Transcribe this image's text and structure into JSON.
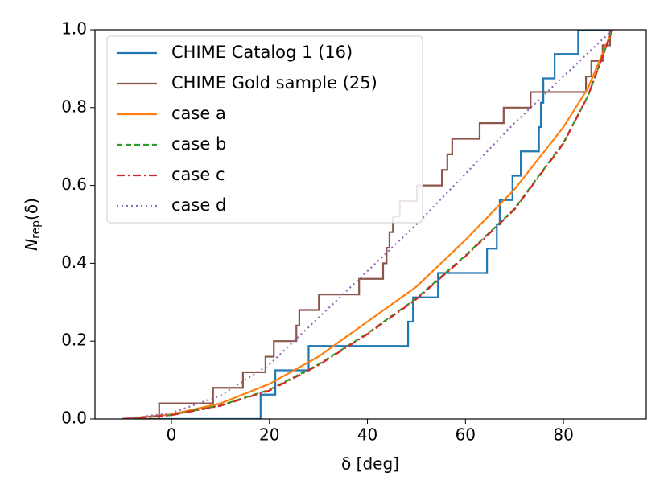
{
  "chart_data": {
    "type": "line",
    "xlabel": "δ [deg]",
    "ylabel": [
      "N",
      "rep",
      "(δ)"
    ],
    "xlim": [
      -15.6,
      96.9
    ],
    "ylim": [
      0,
      1
    ],
    "xticks": [
      0,
      20,
      40,
      60,
      80
    ],
    "yticks": [
      {
        "value": 0,
        "label": "0.0"
      },
      {
        "value": 0.2,
        "label": "0.2"
      },
      {
        "value": 0.4,
        "label": "0.4"
      },
      {
        "value": 0.6,
        "label": "0.6"
      },
      {
        "value": 0.8,
        "label": "0.8"
      },
      {
        "value": 1,
        "label": "1.0"
      }
    ],
    "legend": "upper left",
    "series": [
      {
        "name": "CHIME Catalog 1 (16)",
        "color": "#1f77b4",
        "linestyle": "solid",
        "drawstyle": "steps-post",
        "x": [
          -10,
          18.2,
          21.2,
          28,
          48.3,
          49.3,
          54.4,
          64.4,
          66.4,
          67,
          69.6,
          71.3,
          75,
          75.4,
          75.9,
          78.2,
          83,
          90
        ],
        "values": [
          0,
          0.0625,
          0.125,
          0.1875,
          0.25,
          0.3125,
          0.375,
          0.4375,
          0.5,
          0.5625,
          0.625,
          0.6875,
          0.75,
          0.8125,
          0.875,
          0.9375,
          1,
          1
        ]
      },
      {
        "name": "CHIME Gold sample (25)",
        "color": "#8c564b",
        "linestyle": "solid",
        "drawstyle": "steps-post",
        "x": [
          -10,
          -2.5,
          8.5,
          14.6,
          19.2,
          20.9,
          25.5,
          26.1,
          30.1,
          38.3,
          43.2,
          43.9,
          44.5,
          45.2,
          46.6,
          50.1,
          55.2,
          56.3,
          57.3,
          62.9,
          67.8,
          73.3,
          84.6,
          85.7,
          88,
          89.5
        ],
        "values": [
          0,
          0.04,
          0.08,
          0.12,
          0.16,
          0.2,
          0.24,
          0.28,
          0.32,
          0.36,
          0.4,
          0.44,
          0.48,
          0.52,
          0.56,
          0.6,
          0.64,
          0.68,
          0.72,
          0.76,
          0.8,
          0.84,
          0.88,
          0.92,
          0.96,
          1
        ]
      },
      {
        "name": "case a",
        "color": "#ff7f0e",
        "linestyle": "solid",
        "drawstyle": "default",
        "x": [
          -10,
          0,
          10,
          20,
          30,
          40,
          50,
          60,
          70,
          80,
          85,
          90
        ],
        "values": [
          0,
          0.012,
          0.04,
          0.09,
          0.16,
          0.25,
          0.34,
          0.46,
          0.59,
          0.75,
          0.85,
          1
        ]
      },
      {
        "name": "case b",
        "color": "#2ca02c",
        "linestyle": "dashed",
        "drawstyle": "default",
        "x": [
          -10,
          0,
          10,
          20,
          30,
          40,
          50,
          60,
          70,
          80,
          85,
          90
        ],
        "values": [
          0,
          0.01,
          0.035,
          0.075,
          0.14,
          0.22,
          0.31,
          0.42,
          0.54,
          0.71,
          0.83,
          1
        ]
      },
      {
        "name": "case c",
        "color": "#d62728",
        "linestyle": "dashdot",
        "drawstyle": "default",
        "x": [
          -10,
          0,
          10,
          20,
          30,
          40,
          50,
          60,
          70,
          80,
          85,
          90
        ],
        "values": [
          0,
          0.01,
          0.034,
          0.073,
          0.138,
          0.218,
          0.308,
          0.418,
          0.538,
          0.708,
          0.83,
          1
        ]
      },
      {
        "name": "case d",
        "color": "#9467bd",
        "linestyle": "dotted",
        "drawstyle": "default",
        "x": [
          -10,
          0,
          10,
          20,
          30,
          40,
          50,
          60,
          70,
          80,
          85,
          90
        ],
        "values": [
          0,
          0.015,
          0.06,
          0.14,
          0.26,
          0.38,
          0.5,
          0.63,
          0.76,
          0.88,
          0.94,
          1
        ]
      }
    ]
  }
}
